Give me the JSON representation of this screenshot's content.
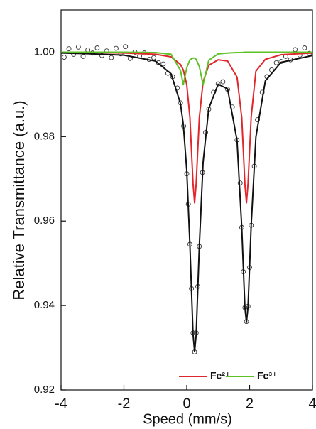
{
  "chart_data": {
    "type": "line",
    "x_label": "Speed (mm/s)",
    "y_label": "Relative Transmittance (a.u.)",
    "xlim": [
      -4,
      4
    ],
    "xticks": [
      -4,
      -2,
      0,
      2,
      4
    ],
    "ylim": [
      0.92,
      1.01
    ],
    "yticks": [
      {
        "value": 1.0,
        "label": "1.00"
      },
      0.98,
      0.96,
      0.94,
      0.92
    ],
    "legend": "lower right",
    "x": [
      -4,
      -3,
      -2,
      -1,
      -0.5,
      -0.2,
      -0.11,
      0,
      0.1,
      0.2,
      0.25,
      0.3,
      0.4,
      0.52,
      0.7,
      1.0,
      1.3,
      1.6,
      1.75,
      1.85,
      1.9,
      1.95,
      2.05,
      2.2,
      2.5,
      3,
      4
    ],
    "series": [
      {
        "color": "#111111",
        "values": [
          0.9998,
          0.9996,
          0.9993,
          0.9979,
          0.9949,
          0.9878,
          0.9829,
          0.972,
          0.9544,
          0.9332,
          0.9291,
          0.9331,
          0.9541,
          0.9739,
          0.9867,
          0.9924,
          0.9913,
          0.9791,
          0.9585,
          0.9396,
          0.936,
          0.9397,
          0.9589,
          0.9799,
          0.9932,
          0.9976,
          0.9992
        ]
      },
      {
        "name": "Fe²⁺",
        "color": "#e0262b",
        "values": [
          1.0,
          0.9999,
          0.9998,
          0.9995,
          0.9989,
          0.9971,
          0.9958,
          0.9923,
          0.9846,
          0.9689,
          0.9643,
          0.9689,
          0.9845,
          0.993,
          0.9969,
          0.9982,
          0.9979,
          0.9941,
          0.9845,
          0.9688,
          0.9643,
          0.9689,
          0.9846,
          0.9955,
          0.9983,
          0.9994,
          0.9998
        ]
      },
      {
        "name": "Fe³⁺",
        "color": "#5cc226",
        "values": [
          1.0,
          1.0,
          1.0,
          0.9999,
          0.9995,
          0.9957,
          0.9923,
          0.9963,
          0.9982,
          0.9986,
          0.9986,
          0.9983,
          0.9966,
          0.9923,
          0.9981,
          0.9996,
          0.9998,
          0.9999,
          0.9999,
          1.0,
          1.0,
          1.0,
          1.0,
          1.0,
          1.0,
          1.0,
          1.0
        ]
      }
    ],
    "points": {
      "x": [
        -3.9,
        -3.75,
        -3.6,
        -3.45,
        -3.3,
        -3.15,
        -3.0,
        -2.85,
        -2.7,
        -2.55,
        -2.4,
        -2.25,
        -2.1,
        -1.95,
        -1.8,
        -1.65,
        -1.5,
        -1.35,
        -1.2,
        -1.05,
        -0.9,
        -0.75,
        -0.6,
        -0.45,
        -0.3,
        -0.2,
        -0.1,
        0.0,
        0.05,
        0.1,
        0.15,
        0.2,
        0.25,
        0.3,
        0.35,
        0.4,
        0.5,
        0.6,
        0.7,
        0.85,
        1.0,
        1.15,
        1.3,
        1.45,
        1.6,
        1.7,
        1.75,
        1.8,
        1.85,
        1.9,
        1.95,
        2.0,
        2.05,
        2.15,
        2.25,
        2.4,
        2.55,
        2.7,
        2.85,
        3.0,
        3.15,
        3.3,
        3.45,
        3.6,
        3.75,
        3.9
      ],
      "y": [
        0.9988,
        1.0008,
        0.9995,
        1.0012,
        0.999,
        1.0005,
        0.9998,
        1.001,
        0.9992,
        1.0003,
        0.9987,
        1.0009,
        0.9996,
        1.0013,
        0.9985,
        1.0,
        0.9991,
        0.9998,
        0.9983,
        0.9987,
        0.9975,
        0.9972,
        0.995,
        0.9942,
        0.9915,
        0.988,
        0.9825,
        0.9712,
        0.964,
        0.9545,
        0.944,
        0.9335,
        0.929,
        0.9335,
        0.9445,
        0.954,
        0.9715,
        0.981,
        0.9865,
        0.9905,
        0.9925,
        0.993,
        0.9912,
        0.987,
        0.9792,
        0.969,
        0.9585,
        0.948,
        0.9395,
        0.9362,
        0.9398,
        0.949,
        0.959,
        0.973,
        0.984,
        0.9905,
        0.9942,
        0.9958,
        0.9975,
        0.9978,
        0.999,
        0.9982,
        1.0006,
        0.9993,
        1.001,
        0.9997
      ]
    }
  }
}
